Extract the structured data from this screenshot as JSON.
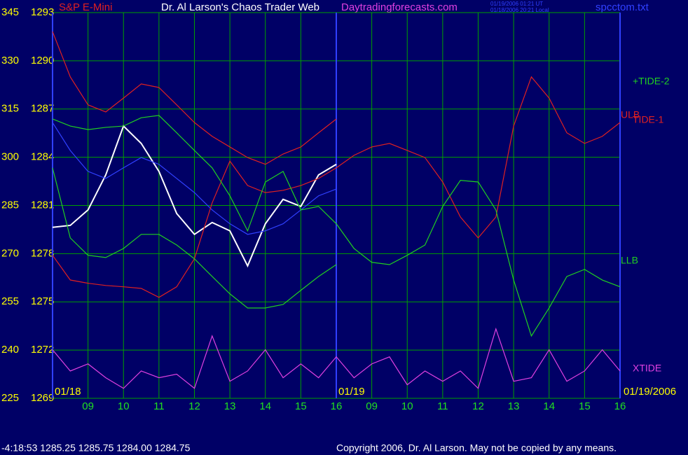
{
  "chart_data": {
    "type": "line",
    "title": "Dr. Al Larson's Chaos Trader Web",
    "symbol": "S&P E-Mini",
    "site": "Daytradingforecasts.com",
    "timestamps": [
      "01/19/2006 01:21 UT",
      "01/18/2006 20:21 Local"
    ],
    "file": "spcctom.txt",
    "day_labels": [
      "01/18",
      "01/19",
      "01/19/2006"
    ],
    "status": "-4:18:53  1285.25 1285.75 1284.00 1284.75",
    "copyright": "Copyright 2006, Dr. Al Larson. May not be copied by any means.",
    "grid": true,
    "xlim": [
      0,
      16
    ],
    "xticks": [
      {
        "value": 1,
        "label": "09"
      },
      {
        "value": 2,
        "label": "10"
      },
      {
        "value": 3,
        "label": "11"
      },
      {
        "value": 4,
        "label": "12"
      },
      {
        "value": 5,
        "label": "13"
      },
      {
        "value": 6,
        "label": "14"
      },
      {
        "value": 7,
        "label": "15"
      },
      {
        "value": 8,
        "label": "16"
      },
      {
        "value": 9,
        "label": "09"
      },
      {
        "value": 10,
        "label": "10"
      },
      {
        "value": 11,
        "label": "11"
      },
      {
        "value": 12,
        "label": "12"
      },
      {
        "value": 13,
        "label": "13"
      },
      {
        "value": 14,
        "label": "14"
      },
      {
        "value": 15,
        "label": "15"
      },
      {
        "value": 16,
        "label": "16"
      }
    ],
    "ylim": [
      225,
      345
    ],
    "yticks": [
      225,
      240,
      255,
      270,
      285,
      300,
      315,
      330,
      345
    ],
    "y2lim": [
      1269,
      1293
    ],
    "y2ticks": [
      1269,
      1272,
      1275,
      1278,
      1281,
      1284,
      1287,
      1290,
      1293
    ],
    "x": [
      0,
      0.5,
      1,
      1.5,
      2,
      2.5,
      3,
      3.5,
      4,
      4.5,
      5,
      5.5,
      6,
      6.5,
      7,
      7.5,
      8,
      8.5,
      9,
      9.5,
      10,
      10.5,
      11,
      11.5,
      12,
      12.5,
      13,
      13.5,
      14,
      14.5,
      15,
      15.5,
      16
    ],
    "series": [
      {
        "color": "#ffffff",
        "values": [
          278.2,
          278.8,
          283.6,
          294.5,
          309.7,
          304.3,
          295.6,
          282.5,
          276.0,
          279.7,
          277.1,
          266.2,
          279.3,
          286.9,
          284.7,
          294.5,
          297.8,
          null,
          null,
          null,
          null,
          null,
          null,
          null,
          null,
          null,
          null,
          null,
          null,
          null,
          null,
          null,
          null
        ]
      },
      {
        "color": "#3040ff",
        "values": [
          310.8,
          302.1,
          295.6,
          293.4,
          296.7,
          299.9,
          297.8,
          293.4,
          289.0,
          283.6,
          279.3,
          276.0,
          277.1,
          279.3,
          283.6,
          288.0,
          290.1,
          null,
          null,
          null,
          null,
          null,
          null,
          null,
          null,
          null,
          null,
          null,
          null,
          null,
          null,
          null,
          null
        ]
      },
      {
        "name": "ULB",
        "color": "#e02020",
        "values": [
          339.1,
          325.0,
          316.3,
          314.1,
          318.4,
          322.8,
          321.7,
          316.3,
          310.8,
          306.5,
          303.2,
          299.9,
          297.8,
          301.0,
          303.2,
          307.6,
          311.9,
          null,
          null,
          null,
          null,
          null,
          null,
          null,
          null,
          null,
          null,
          null,
          null,
          null,
          null,
          null,
          null
        ]
      },
      {
        "name": "TIDE-1",
        "color": "#e02020",
        "values": [
          269.5,
          261.8,
          260.8,
          260.1,
          259.7,
          259.2,
          256.4,
          259.7,
          268.4,
          285.8,
          298.8,
          291.2,
          289.0,
          289.7,
          291.2,
          293.4,
          296.7,
          300.6,
          303.2,
          304.3,
          302.1,
          299.9,
          292.3,
          281.4,
          274.9,
          281.4,
          309.7,
          325.0,
          318.4,
          307.6,
          304.3,
          306.5,
          310.8
        ]
      },
      {
        "name": "+TIDE-2",
        "color": "#20d020",
        "values": [
          311.9,
          309.7,
          308.6,
          309.3,
          309.7,
          312.3,
          313.0,
          307.6,
          302.1,
          296.7,
          288.0,
          277.1,
          292.3,
          295.6,
          283.6,
          284.7,
          279.3,
          271.6,
          267.3,
          266.6,
          269.5,
          272.7,
          284.7,
          292.8,
          292.3,
          283.6,
          261.8,
          244.4,
          253.1,
          262.9,
          265.1,
          261.8,
          259.7
        ]
      },
      {
        "name": "LLB",
        "color": "#20d020",
        "values": [
          296.7,
          274.9,
          269.5,
          268.8,
          271.6,
          276.0,
          276.0,
          272.7,
          268.4,
          262.9,
          257.5,
          253.1,
          253.1,
          254.2,
          258.6,
          262.9,
          266.6,
          null,
          null,
          null,
          null,
          null,
          null,
          null,
          null,
          null,
          null,
          null,
          null,
          null,
          null,
          null,
          null
        ]
      },
      {
        "name": "XTIDE",
        "color": "#e040e0",
        "values": [
          240.1,
          233.5,
          235.7,
          231.4,
          228.1,
          233.5,
          231.4,
          232.5,
          228.1,
          244.4,
          230.3,
          233.5,
          240.1,
          231.4,
          235.7,
          231.4,
          237.9,
          231.4,
          235.7,
          237.9,
          229.2,
          233.5,
          230.3,
          233.5,
          228.1,
          246.6,
          230.3,
          231.4,
          240.1,
          230.3,
          233.5,
          240.1,
          233.5
        ]
      }
    ]
  }
}
